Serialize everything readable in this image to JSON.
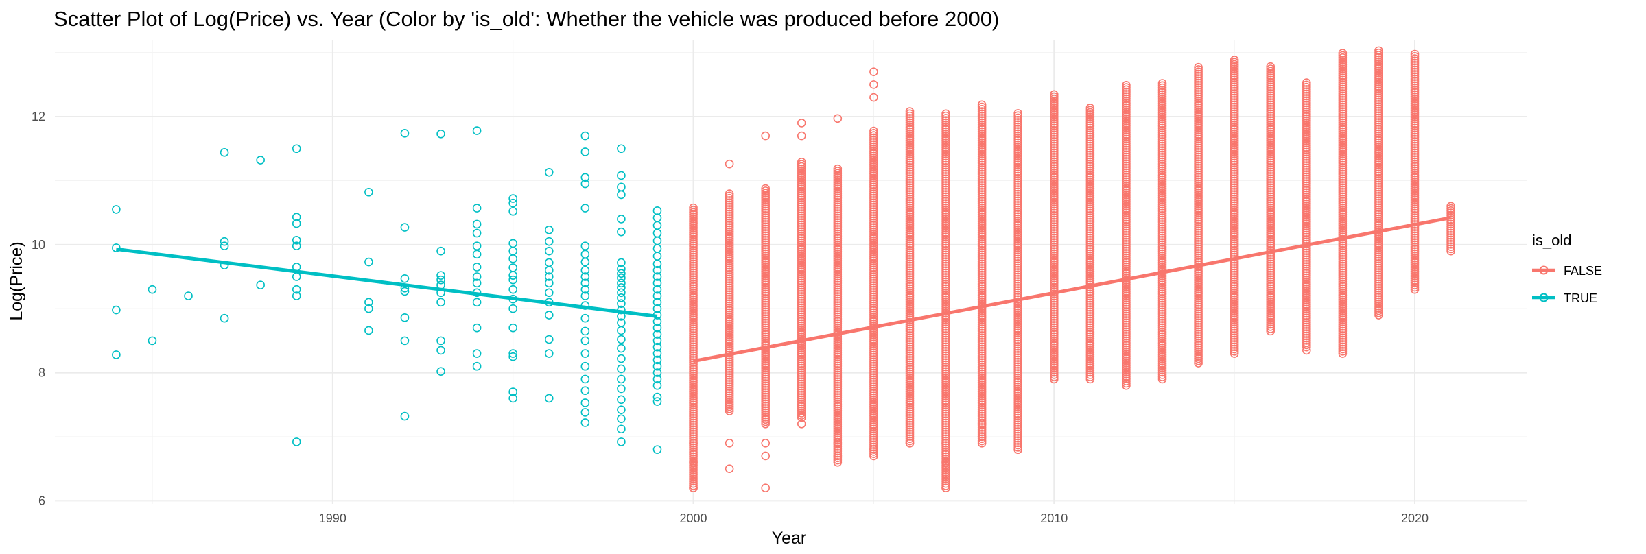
{
  "chart_data": {
    "type": "scatter",
    "title": "Scatter Plot of Log(Price) vs. Year (Color by 'is_old': Whether the vehicle was produced before 2000)",
    "xlabel": "Year",
    "ylabel": "Log(Price)",
    "xlim": [
      1982.3,
      2023.1
    ],
    "ylim": [
      5.95,
      13.2
    ],
    "x_ticks": [
      1990,
      2000,
      2010,
      2020
    ],
    "y_ticks": [
      6,
      8,
      10,
      12
    ],
    "grid": true,
    "legend": {
      "title": "is_old",
      "position": "right"
    },
    "series": [
      {
        "name": "FALSE",
        "color": "#F8766D",
        "marker": "open-circle",
        "columns": [
          {
            "x": 2000,
            "min": 6.2,
            "max": 10.6,
            "outliers": [
              6.9,
              6.6,
              6.2
            ]
          },
          {
            "x": 2001,
            "min": 7.4,
            "max": 10.8,
            "outliers": [
              11.26,
              6.9,
              6.5
            ]
          },
          {
            "x": 2002,
            "min": 7.2,
            "max": 10.9,
            "outliers": [
              11.7,
              6.9,
              6.7,
              6.2
            ]
          },
          {
            "x": 2003,
            "min": 7.3,
            "max": 11.3,
            "outliers": [
              11.9,
              11.7,
              7.2
            ]
          },
          {
            "x": 2004,
            "min": 6.6,
            "max": 11.2,
            "outliers": [
              11.97,
              6.9,
              6.7
            ]
          },
          {
            "x": 2005,
            "min": 6.7,
            "max": 11.8,
            "outliers": [
              12.7,
              12.5,
              12.3,
              6.8
            ]
          },
          {
            "x": 2006,
            "min": 6.9,
            "max": 12.1,
            "outliers": [
              6.9
            ]
          },
          {
            "x": 2007,
            "min": 6.2,
            "max": 12.05,
            "outliers": [
              6.9,
              6.6,
              6.2
            ]
          },
          {
            "x": 2008,
            "min": 6.9,
            "max": 12.2,
            "outliers": [
              7.2,
              7.0
            ]
          },
          {
            "x": 2009,
            "min": 6.8,
            "max": 12.05,
            "outliers": [
              7.6,
              6.8
            ]
          },
          {
            "x": 2010,
            "min": 7.9,
            "max": 12.35,
            "outliers": []
          },
          {
            "x": 2011,
            "min": 7.9,
            "max": 12.15,
            "outliers": []
          },
          {
            "x": 2012,
            "min": 7.8,
            "max": 12.5,
            "outliers": []
          },
          {
            "x": 2013,
            "min": 7.9,
            "max": 12.55,
            "outliers": []
          },
          {
            "x": 2014,
            "min": 8.15,
            "max": 12.8,
            "outliers": []
          },
          {
            "x": 2015,
            "min": 8.3,
            "max": 12.9,
            "outliers": []
          },
          {
            "x": 2016,
            "min": 8.65,
            "max": 12.8,
            "outliers": []
          },
          {
            "x": 2017,
            "min": 8.4,
            "max": 12.55,
            "outliers": [
              8.35
            ]
          },
          {
            "x": 2018,
            "min": 8.3,
            "max": 13.0,
            "outliers": []
          },
          {
            "x": 2019,
            "min": 8.9,
            "max": 13.05,
            "outliers": []
          },
          {
            "x": 2020,
            "min": 9.3,
            "max": 13.0,
            "outliers": []
          },
          {
            "x": 2021,
            "min": 9.9,
            "max": 10.6,
            "outliers": []
          }
        ],
        "trend": {
          "x": [
            2000,
            2021
          ],
          "y": [
            8.18,
            10.42
          ]
        }
      },
      {
        "name": "TRUE",
        "color": "#00BFC4",
        "marker": "open-circle",
        "points": [
          [
            1984,
            10.55
          ],
          [
            1984,
            9.95
          ],
          [
            1984,
            8.98
          ],
          [
            1984,
            8.28
          ],
          [
            1985,
            9.3
          ],
          [
            1985,
            8.5
          ],
          [
            1986,
            9.2
          ],
          [
            1987,
            11.44
          ],
          [
            1987,
            10.05
          ],
          [
            1987,
            9.98
          ],
          [
            1987,
            9.68
          ],
          [
            1987,
            8.85
          ],
          [
            1988,
            11.32
          ],
          [
            1988,
            9.37
          ],
          [
            1989,
            11.5
          ],
          [
            1989,
            10.43
          ],
          [
            1989,
            10.33
          ],
          [
            1989,
            10.07
          ],
          [
            1989,
            9.98
          ],
          [
            1989,
            9.65
          ],
          [
            1989,
            9.5
          ],
          [
            1989,
            9.3
          ],
          [
            1989,
            9.2
          ],
          [
            1989,
            6.92
          ],
          [
            1991,
            10.82
          ],
          [
            1991,
            9.73
          ],
          [
            1991,
            9.1
          ],
          [
            1991,
            9.0
          ],
          [
            1991,
            8.66
          ],
          [
            1992,
            11.74
          ],
          [
            1992,
            10.27
          ],
          [
            1992,
            9.47
          ],
          [
            1992,
            9.32
          ],
          [
            1992,
            9.27
          ],
          [
            1992,
            8.86
          ],
          [
            1992,
            8.5
          ],
          [
            1992,
            7.32
          ],
          [
            1993,
            11.73
          ],
          [
            1993,
            9.9
          ],
          [
            1993,
            9.52
          ],
          [
            1993,
            9.45
          ],
          [
            1993,
            9.37
          ],
          [
            1993,
            9.25
          ],
          [
            1993,
            9.1
          ],
          [
            1993,
            8.5
          ],
          [
            1993,
            8.35
          ],
          [
            1993,
            8.02
          ],
          [
            1994,
            11.78
          ],
          [
            1994,
            10.57
          ],
          [
            1994,
            10.32
          ],
          [
            1994,
            10.18
          ],
          [
            1994,
            9.98
          ],
          [
            1994,
            9.85
          ],
          [
            1994,
            9.65
          ],
          [
            1994,
            9.5
          ],
          [
            1994,
            9.4
          ],
          [
            1994,
            9.25
          ],
          [
            1994,
            9.1
          ],
          [
            1994,
            8.7
          ],
          [
            1994,
            8.3
          ],
          [
            1994,
            8.1
          ],
          [
            1995,
            10.72
          ],
          [
            1995,
            10.65
          ],
          [
            1995,
            10.52
          ],
          [
            1995,
            10.02
          ],
          [
            1995,
            9.9
          ],
          [
            1995,
            9.78
          ],
          [
            1995,
            9.64
          ],
          [
            1995,
            9.52
          ],
          [
            1995,
            9.45
          ],
          [
            1995,
            9.3
          ],
          [
            1995,
            9.15
          ],
          [
            1995,
            9.0
          ],
          [
            1995,
            8.7
          ],
          [
            1995,
            8.3
          ],
          [
            1995,
            8.25
          ],
          [
            1995,
            7.7
          ],
          [
            1995,
            7.6
          ],
          [
            1996,
            11.13
          ],
          [
            1996,
            10.23
          ],
          [
            1996,
            10.05
          ],
          [
            1996,
            9.9
          ],
          [
            1996,
            9.72
          ],
          [
            1996,
            9.6
          ],
          [
            1996,
            9.5
          ],
          [
            1996,
            9.4
          ],
          [
            1996,
            9.25
          ],
          [
            1996,
            9.1
          ],
          [
            1996,
            8.9
          ],
          [
            1996,
            8.52
          ],
          [
            1996,
            8.3
          ],
          [
            1996,
            7.6
          ],
          [
            1997,
            11.7
          ],
          [
            1997,
            11.45
          ],
          [
            1997,
            11.05
          ],
          [
            1997,
            10.95
          ],
          [
            1997,
            10.57
          ],
          [
            1997,
            9.98
          ],
          [
            1997,
            9.85
          ],
          [
            1997,
            9.73
          ],
          [
            1997,
            9.6
          ],
          [
            1997,
            9.5
          ],
          [
            1997,
            9.4
          ],
          [
            1997,
            9.3
          ],
          [
            1997,
            9.2
          ],
          [
            1997,
            9.05
          ],
          [
            1997,
            8.85
          ],
          [
            1997,
            8.65
          ],
          [
            1997,
            8.5
          ],
          [
            1997,
            8.3
          ],
          [
            1997,
            8.1
          ],
          [
            1997,
            7.9
          ],
          [
            1997,
            7.72
          ],
          [
            1997,
            7.53
          ],
          [
            1997,
            7.38
          ],
          [
            1997,
            7.22
          ],
          [
            1998,
            11.5
          ],
          [
            1998,
            11.08
          ],
          [
            1998,
            10.9
          ],
          [
            1998,
            10.78
          ],
          [
            1998,
            10.4
          ],
          [
            1998,
            10.2
          ],
          [
            1998,
            9.72
          ],
          [
            1998,
            9.62
          ],
          [
            1998,
            9.55
          ],
          [
            1998,
            9.48
          ],
          [
            1998,
            9.4
          ],
          [
            1998,
            9.33
          ],
          [
            1998,
            9.25
          ],
          [
            1998,
            9.17
          ],
          [
            1998,
            9.08
          ],
          [
            1998,
            8.98
          ],
          [
            1998,
            8.88
          ],
          [
            1998,
            8.78
          ],
          [
            1998,
            8.66
          ],
          [
            1998,
            8.52
          ],
          [
            1998,
            8.38
          ],
          [
            1998,
            8.22
          ],
          [
            1998,
            8.06
          ],
          [
            1998,
            7.9
          ],
          [
            1998,
            7.75
          ],
          [
            1998,
            7.58
          ],
          [
            1998,
            7.42
          ],
          [
            1998,
            7.28
          ],
          [
            1998,
            7.12
          ],
          [
            1998,
            6.92
          ],
          [
            1999,
            10.53
          ],
          [
            1999,
            10.42
          ],
          [
            1999,
            10.3
          ],
          [
            1999,
            10.18
          ],
          [
            1999,
            10.06
          ],
          [
            1999,
            9.94
          ],
          [
            1999,
            9.82
          ],
          [
            1999,
            9.7
          ],
          [
            1999,
            9.6
          ],
          [
            1999,
            9.5
          ],
          [
            1999,
            9.4
          ],
          [
            1999,
            9.3
          ],
          [
            1999,
            9.2
          ],
          [
            1999,
            9.1
          ],
          [
            1999,
            9.0
          ],
          [
            1999,
            8.9
          ],
          [
            1999,
            8.8
          ],
          [
            1999,
            8.7
          ],
          [
            1999,
            8.6
          ],
          [
            1999,
            8.5
          ],
          [
            1999,
            8.4
          ],
          [
            1999,
            8.3
          ],
          [
            1999,
            8.2
          ],
          [
            1999,
            8.1
          ],
          [
            1999,
            8.0
          ],
          [
            1999,
            7.9
          ],
          [
            1999,
            7.8
          ],
          [
            1999,
            7.62
          ],
          [
            1999,
            7.55
          ],
          [
            1999,
            6.8
          ]
        ],
        "trend": {
          "x": [
            1984,
            1999
          ],
          "y": [
            9.93,
            8.88
          ]
        }
      }
    ]
  }
}
